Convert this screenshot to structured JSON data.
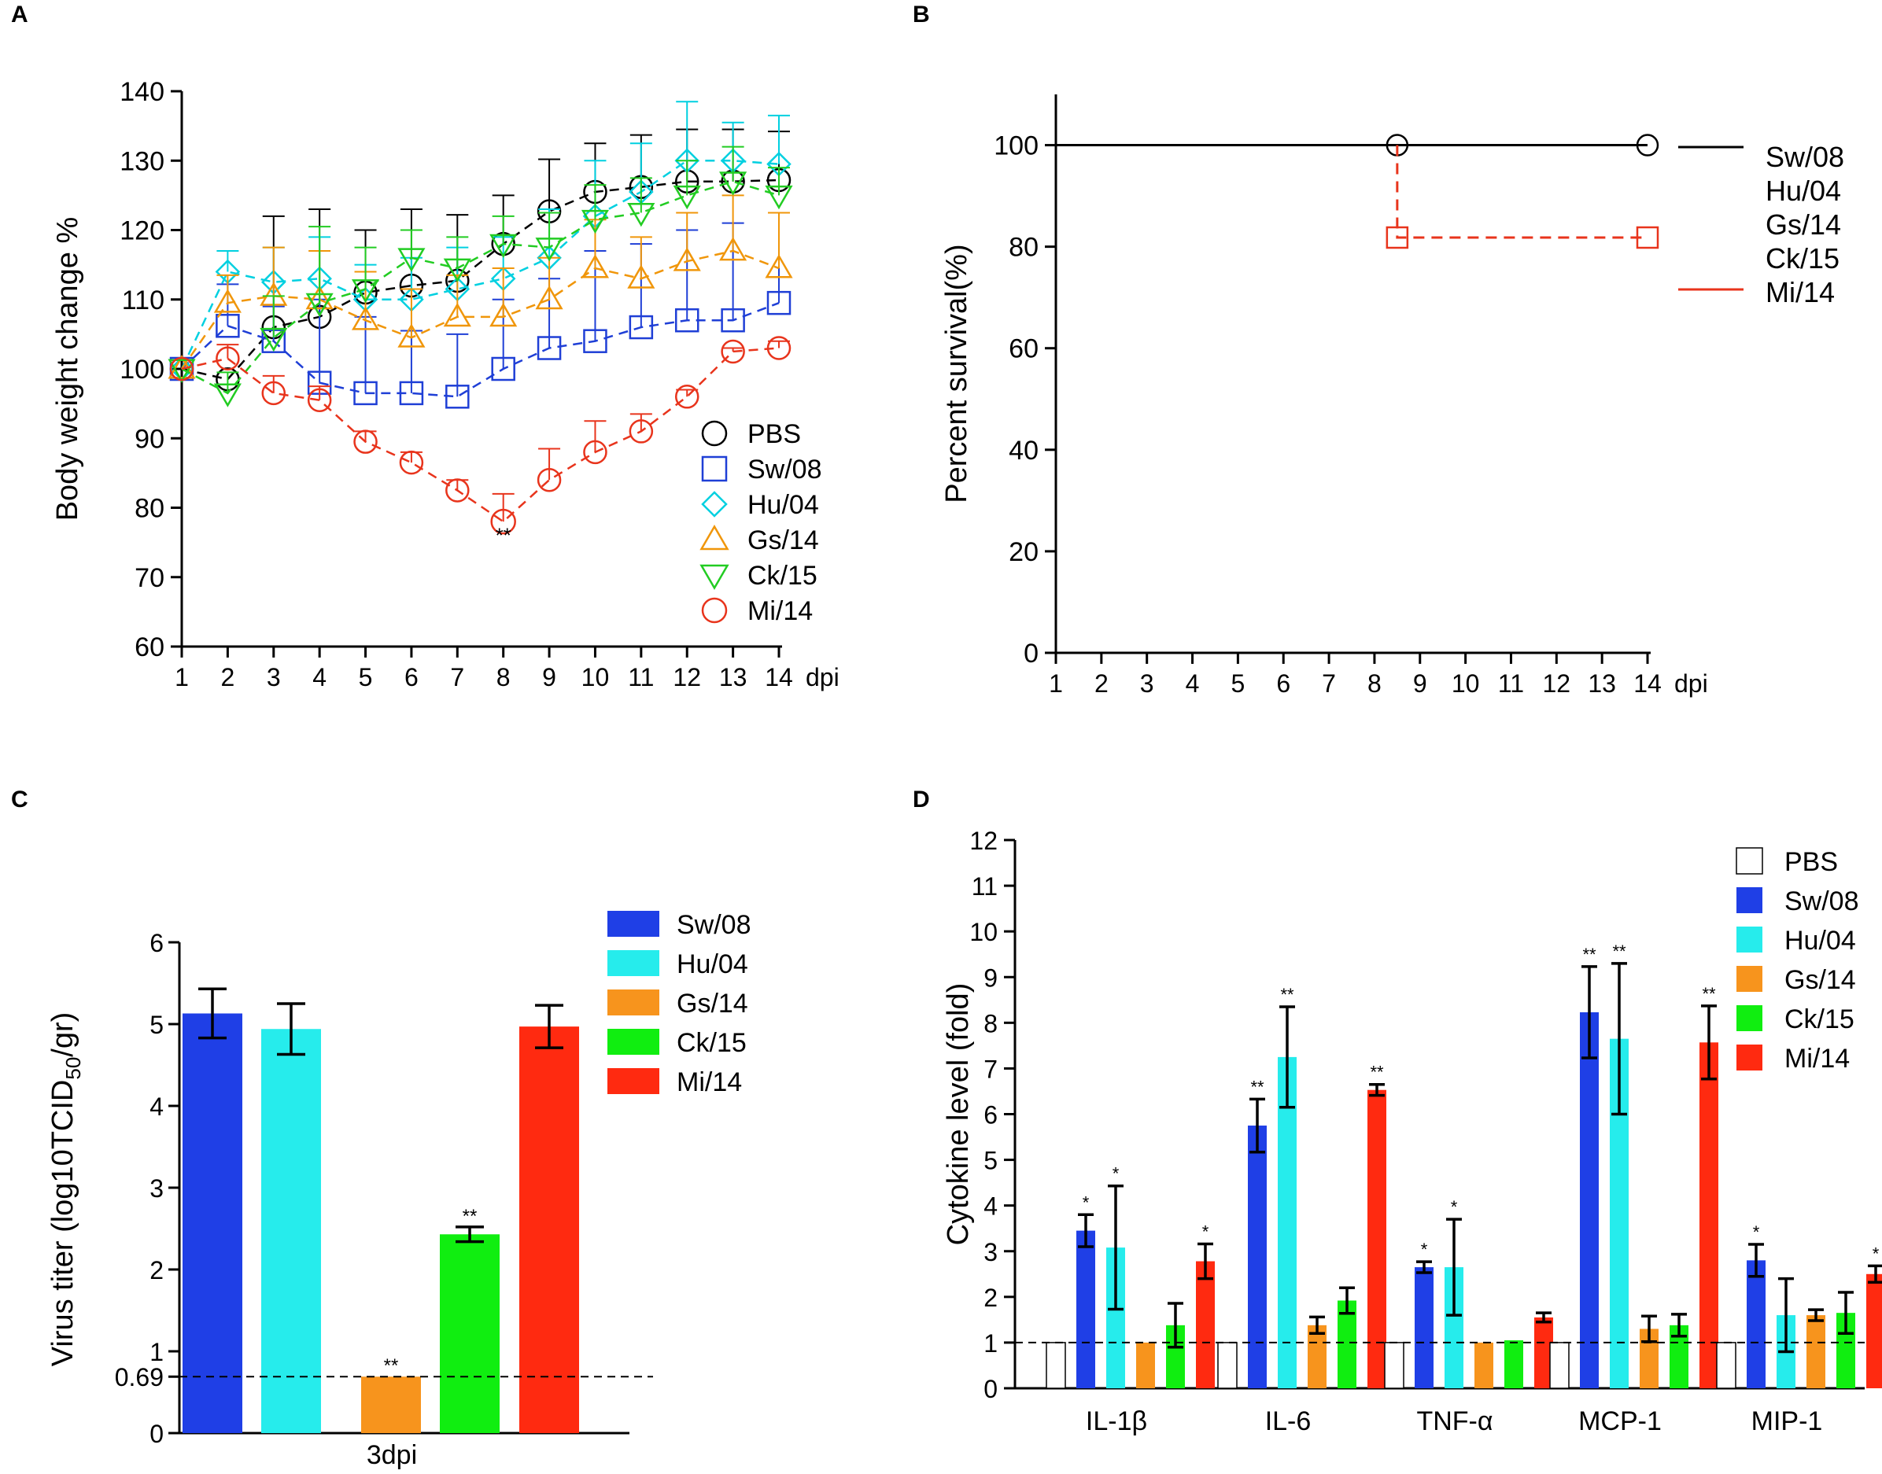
{
  "panels": {
    "a": "A",
    "b": "B",
    "c": "C",
    "d": "D"
  },
  "chart_data": [
    {
      "type": "line",
      "panel": "A",
      "title": "",
      "xlabel": "dpi",
      "ylabel": "Body weight change %",
      "xlim": [
        1,
        14
      ],
      "ylim": [
        60,
        140
      ],
      "x": [
        1,
        2,
        3,
        4,
        5,
        6,
        7,
        8,
        9,
        10,
        11,
        12,
        13,
        14
      ],
      "yticks": [
        60,
        70,
        80,
        90,
        100,
        110,
        120,
        130,
        140
      ],
      "legend_position": "bottom-right",
      "series": [
        {
          "name": "PBS",
          "color": "#000000",
          "marker": "circle",
          "values": [
            100,
            98.5,
            106,
            107.5,
            111,
            112,
            112.7,
            118,
            122.7,
            125.5,
            126.2,
            127,
            127,
            127.2
          ],
          "errors": [
            0,
            0,
            16,
            15.5,
            9,
            11,
            9.5,
            7,
            7.5,
            7,
            7.5,
            7.5,
            7.5,
            7
          ]
        },
        {
          "name": "Sw/08",
          "color": "#1f3fd6",
          "marker": "square",
          "values": [
            100,
            106.2,
            104,
            98,
            96.5,
            96.5,
            96,
            100,
            103,
            104,
            106,
            107,
            107,
            109.5
          ],
          "errors": [
            0,
            6,
            5,
            12,
            11,
            9,
            9,
            10,
            10,
            13,
            12,
            13,
            14,
            13
          ]
        },
        {
          "name": "Hu/04",
          "color": "#00d0e0",
          "marker": "diamond",
          "values": [
            100,
            114,
            112.5,
            113,
            110,
            110,
            111.5,
            113,
            116,
            122,
            125.5,
            130,
            130,
            129.5
          ],
          "errors": [
            0,
            3,
            5,
            6,
            5,
            6,
            6,
            6,
            7,
            8,
            7,
            8.5,
            5.5,
            7
          ]
        },
        {
          "name": "Gs/14",
          "color": "#f0960a",
          "marker": "triangle-up",
          "values": [
            100,
            109.5,
            110.5,
            110,
            107,
            104.5,
            107.5,
            107.5,
            110,
            114.5,
            113,
            115.5,
            117,
            114.5
          ],
          "errors": [
            0,
            4,
            7,
            7,
            7,
            7,
            6,
            7,
            6,
            7,
            6,
            7,
            8,
            8
          ]
        },
        {
          "name": "Ck/15",
          "color": "#22cc22",
          "marker": "triangle-down",
          "values": [
            100,
            96.5,
            104.5,
            109.5,
            111.5,
            116,
            114.5,
            118,
            117.5,
            121.5,
            122.5,
            125,
            127,
            125
          ],
          "errors": [
            0,
            3,
            6,
            11,
            6,
            4,
            4.5,
            4,
            5,
            5,
            5,
            5,
            5,
            4
          ]
        },
        {
          "name": "Mi/14",
          "color": "#e8341c",
          "marker": "circle",
          "values": [
            100,
            101.5,
            96.5,
            95.5,
            89.5,
            86.5,
            82.5,
            78,
            84,
            88,
            91,
            96,
            102.5,
            103
          ],
          "errors": [
            0,
            2,
            2.5,
            2,
            1.5,
            1.5,
            1.5,
            4,
            4.5,
            4.5,
            2.5,
            1,
            0.5,
            1
          ]
        }
      ],
      "annotations": [
        {
          "x": 8,
          "text": "**"
        }
      ]
    },
    {
      "type": "line",
      "panel": "B",
      "title": "",
      "xlabel": "dpi",
      "ylabel": "Percent survival(%)",
      "xlim": [
        1,
        14
      ],
      "ylim": [
        0,
        110
      ],
      "x": [
        1,
        2,
        3,
        4,
        5,
        6,
        7,
        8,
        9,
        10,
        11,
        12,
        13,
        14
      ],
      "yticks": [
        0,
        20,
        40,
        60,
        80,
        100
      ],
      "legend_position": "right",
      "legend": [
        "Sw/08",
        "Hu/04",
        "Gs/14",
        "Ck/15",
        "Mi/14"
      ],
      "series": [
        {
          "name": "Sw/08, Hu/04, Gs/14, Ck/15",
          "color": "#000000",
          "style": "solid",
          "steps": [
            [
              1,
              100
            ],
            [
              14,
              100
            ]
          ],
          "markers": [
            [
              8.5,
              100
            ],
            [
              14,
              100
            ]
          ]
        },
        {
          "name": "Mi/14",
          "color": "#e8341c",
          "style": "dashed",
          "steps": [
            [
              8.5,
              100
            ],
            [
              8.5,
              81.8
            ],
            [
              14,
              81.8
            ]
          ],
          "markers": [
            [
              8.5,
              81.8
            ],
            [
              14,
              81.8
            ]
          ]
        }
      ]
    },
    {
      "type": "bar",
      "panel": "C",
      "title": "",
      "xlabel": "3dpi",
      "ylabel_main": "Virus titer (log10TCID",
      "ylabel_sub": "50",
      "ylabel_tail": "/gr)",
      "ylim": [
        0,
        6
      ],
      "yticks": [
        "0",
        "0.69",
        "1",
        "2",
        "3",
        "4",
        "5",
        "6"
      ],
      "threshold": 0.69,
      "legend_position": "top-right",
      "categories": [
        "Sw/08",
        "Hu/04",
        "Gs/14",
        "Ck/15",
        "Mi/14"
      ],
      "colors": [
        "#1f3fe6",
        "#26ecec",
        "#f7941d",
        "#10ee10",
        "#ff2a10"
      ],
      "values": [
        5.13,
        4.94,
        0.69,
        2.43,
        4.97
      ],
      "errors": [
        0.3,
        0.31,
        0,
        0.09,
        0.26
      ],
      "labels": [
        "",
        "",
        "**",
        "**",
        ""
      ]
    },
    {
      "type": "bar",
      "panel": "D",
      "title": "",
      "xlabel": "",
      "ylabel": "Cytokine level (fold)",
      "ylim": [
        0,
        12
      ],
      "yticks": [
        0,
        1,
        2,
        3,
        4,
        5,
        6,
        7,
        8,
        9,
        10,
        11,
        12
      ],
      "threshold": 1,
      "legend_position": "top-right",
      "categories": [
        "IL-1β",
        "IL-6",
        "TNF-α",
        "MCP-1",
        "MIP-1"
      ],
      "series": [
        {
          "name": "PBS",
          "color": "#ffffff",
          "values": [
            1,
            1,
            1,
            1,
            1
          ],
          "errors": [
            0,
            0,
            0,
            0,
            0
          ],
          "labels": [
            "",
            "",
            "",
            "",
            ""
          ]
        },
        {
          "name": "Sw/08",
          "color": "#1f3fe6",
          "values": [
            3.45,
            5.75,
            2.65,
            8.23,
            2.8
          ],
          "errors": [
            0.35,
            0.58,
            0.12,
            1.0,
            0.35
          ],
          "labels": [
            "*",
            "**",
            "*",
            "**",
            "*"
          ]
        },
        {
          "name": "Hu/04",
          "color": "#26ecec",
          "values": [
            3.08,
            7.25,
            2.65,
            7.65,
            1.6
          ],
          "errors": [
            1.35,
            1.1,
            1.05,
            1.65,
            0.8
          ],
          "labels": [
            "*",
            "**",
            "*",
            "**",
            ""
          ]
        },
        {
          "name": "Gs/14",
          "color": "#f7941d",
          "values": [
            1.0,
            1.38,
            1.0,
            1.3,
            1.6
          ],
          "errors": [
            0,
            0.18,
            0,
            0.28,
            0.12
          ],
          "labels": [
            "",
            "",
            "",
            "",
            ""
          ]
        },
        {
          "name": "Ck/15",
          "color": "#10ee10",
          "values": [
            1.38,
            1.92,
            1.05,
            1.38,
            1.65
          ],
          "errors": [
            0.48,
            0.28,
            0,
            0.24,
            0.45
          ],
          "labels": [
            "",
            "",
            "",
            "",
            ""
          ]
        },
        {
          "name": "Mi/14",
          "color": "#ff2a10",
          "values": [
            2.78,
            6.53,
            1.55,
            7.57,
            2.5
          ],
          "errors": [
            0.38,
            0.12,
            0.1,
            0.8,
            0.18
          ],
          "labels": [
            "*",
            "**",
            "",
            "**",
            "*"
          ]
        }
      ]
    }
  ]
}
